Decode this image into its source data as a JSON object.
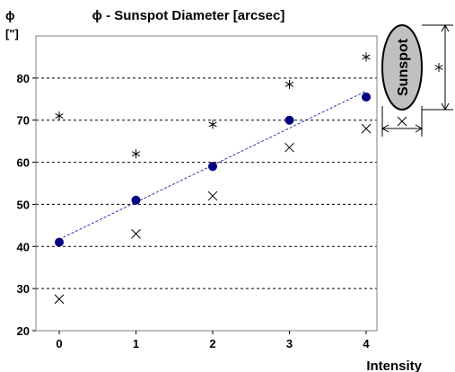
{
  "chart_data": {
    "type": "scatter",
    "title": "ϕ - Sunspot Diameter [arcsec]",
    "ylabel_symbol": "ϕ",
    "ylabel_unit": "[\"]",
    "xlabel": "Intensity",
    "xlim": [
      0,
      4
    ],
    "ylim": [
      20,
      90
    ],
    "x_ticks": [
      0,
      1,
      2,
      3,
      4
    ],
    "y_ticks": [
      20,
      30,
      40,
      50,
      60,
      70,
      80
    ],
    "grid": "horizontal dashed",
    "legend": "none",
    "series": [
      {
        "marker": "star",
        "color": "#000000",
        "x": [
          0,
          1,
          2,
          3,
          4
        ],
        "y": [
          71,
          62,
          69,
          78.5,
          85
        ]
      },
      {
        "marker": "circle",
        "color": "#000080",
        "x": [
          0,
          1,
          2,
          3,
          4
        ],
        "y": [
          41,
          51,
          59,
          70,
          75.5
        ]
      },
      {
        "marker": "cross",
        "color": "#000000",
        "x": [
          0,
          1,
          2,
          3,
          4
        ],
        "y": [
          27.5,
          43,
          52,
          63.5,
          68
        ]
      }
    ],
    "trendline": {
      "series": 1,
      "style": "dashed",
      "color": "#3333aa"
    }
  },
  "inset": {
    "label": "Sunspot",
    "fill": "#c0c0c0",
    "height_marker": "star",
    "width_marker": "cross"
  }
}
